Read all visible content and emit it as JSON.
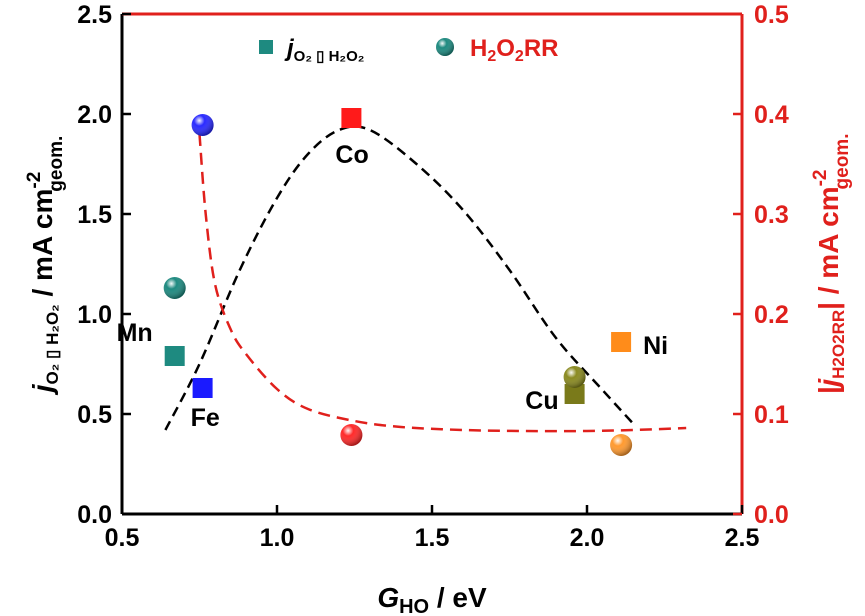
{
  "chart_data": {
    "type": "scatter",
    "xlabel": "G",
    "xlabel_sub": "HO",
    "xlabel_unit": " / eV",
    "ylabel_left": {
      "j": "j",
      "sub": "O₂ ▯ H₂O₂",
      "unit": " / mA cm",
      "sup": "-2",
      "sub2": "geom."
    },
    "ylabel_right": {
      "open": "|j",
      "sub": "H2O2RR",
      "unit": "| / mA cm",
      "sup": "-2",
      "sub2": "geom."
    },
    "xlim": [
      0.5,
      2.5
    ],
    "ylim_left": [
      0.0,
      2.5
    ],
    "ylim_right": [
      0.0,
      0.5
    ],
    "x_ticks": [
      "0.5",
      "1.0",
      "1.5",
      "2.0",
      "2.5"
    ],
    "y_left_ticks": [
      "0.0",
      "0.5",
      "1.0",
      "1.5",
      "2.0",
      "2.5"
    ],
    "y_right_ticks": [
      "0.0",
      "0.1",
      "0.2",
      "0.3",
      "0.4",
      "0.5"
    ],
    "grid": false,
    "legend": {
      "position": "top-center",
      "entries": [
        {
          "j": "j",
          "sub": "O₂ ▯ H₂O₂",
          "marker": "square",
          "color": "#1e8a80"
        },
        {
          "html_parts": [
            "H",
            "2",
            "O",
            "2",
            "RR"
          ],
          "marker": "sphere",
          "color": "#1e8a80",
          "text_color": "#e0201c"
        }
      ]
    },
    "series": [
      {
        "name": "jO2→H2O2",
        "axis": "left",
        "marker": "square",
        "points": [
          {
            "label": "Mn",
            "x": 0.67,
            "y": 0.79,
            "color": "#1e8a80"
          },
          {
            "label": "Fe",
            "x": 0.76,
            "y": 0.63,
            "color": "#1a1aff"
          },
          {
            "label": "Co",
            "x": 1.24,
            "y": 1.98,
            "color": "#ff1a1a"
          },
          {
            "label": "Cu",
            "x": 1.96,
            "y": 0.6,
            "color": "#7a7a1a"
          },
          {
            "label": "Ni",
            "x": 2.11,
            "y": 0.86,
            "color": "#ff8c1a"
          }
        ]
      },
      {
        "name": "H2O2RR",
        "axis": "right",
        "marker": "sphere",
        "points": [
          {
            "x": 0.76,
            "y": 0.389,
            "color": "#2a2aff"
          },
          {
            "x": 0.67,
            "y": 0.226,
            "color": "#1e8a80"
          },
          {
            "x": 1.24,
            "y": 0.079,
            "color": "#ff2a2a"
          },
          {
            "x": 1.96,
            "y": 0.137,
            "color": "#8a8a20"
          },
          {
            "x": 2.11,
            "y": 0.069,
            "color": "#ff9a30"
          }
        ]
      }
    ],
    "trend_lines": [
      {
        "axis": "left",
        "color": "#000000",
        "style": "dashed",
        "points": [
          [
            0.64,
            0.42
          ],
          [
            0.75,
            0.75
          ],
          [
            0.88,
            1.22
          ],
          [
            1.0,
            1.58
          ],
          [
            1.1,
            1.8
          ],
          [
            1.2,
            1.92
          ],
          [
            1.3,
            1.92
          ],
          [
            1.45,
            1.75
          ],
          [
            1.6,
            1.52
          ],
          [
            1.75,
            1.22
          ],
          [
            1.9,
            0.88
          ],
          [
            2.05,
            0.62
          ],
          [
            2.15,
            0.45
          ]
        ]
      },
      {
        "axis": "right",
        "color": "#e0201c",
        "style": "dashed",
        "points": [
          [
            0.75,
            0.38
          ],
          [
            0.77,
            0.3
          ],
          [
            0.8,
            0.23
          ],
          [
            0.85,
            0.185
          ],
          [
            0.9,
            0.16
          ],
          [
            1.0,
            0.125
          ],
          [
            1.1,
            0.105
          ],
          [
            1.25,
            0.093
          ],
          [
            1.4,
            0.087
          ],
          [
            1.6,
            0.084
          ],
          [
            1.8,
            0.083
          ],
          [
            2.0,
            0.083
          ],
          [
            2.15,
            0.084
          ],
          [
            2.32,
            0.086
          ]
        ]
      }
    ]
  }
}
